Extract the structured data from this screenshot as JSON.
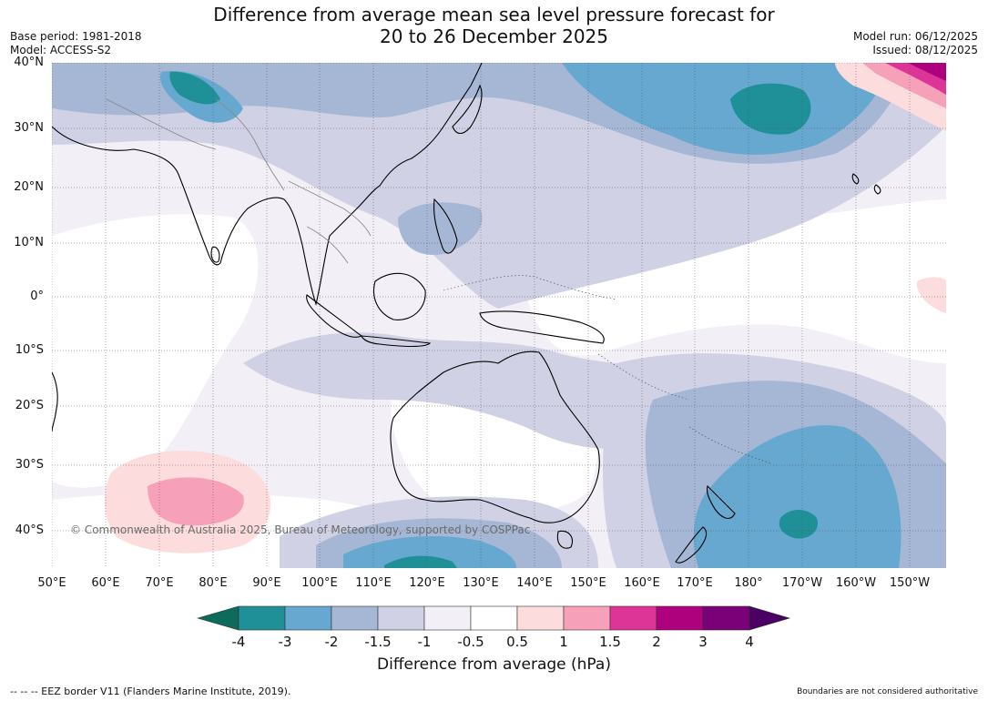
{
  "title_line1": "Difference from average mean sea level pressure forecast for",
  "title_line2": "20 to 26 December 2025",
  "base_period": "Base period: 1981-2018",
  "model": "Model: ACCESS-S2",
  "model_run": "Model run: 06/12/2025",
  "issued": "Issued: 08/12/2025",
  "copyright": "© Commonwealth of Australia 2025, Bureau of Meteorology, supported by COSPPac",
  "lat_labels": [
    "40°N",
    "30°N",
    "20°N",
    "10°N",
    "0°",
    "10°S",
    "20°S",
    "30°S",
    "40°S"
  ],
  "lon_labels": [
    "50°E",
    "60°E",
    "70°E",
    "80°E",
    "90°E",
    "100°E",
    "110°E",
    "120°E",
    "130°E",
    "140°E",
    "150°E",
    "160°E",
    "170°E",
    "180°",
    "170°W",
    "160°W",
    "150°W"
  ],
  "colorbar": {
    "ticks": [
      "-4",
      "-3",
      "-2",
      "-1.5",
      "-1",
      "-0.5",
      "0.5",
      "1",
      "1.5",
      "2",
      "3",
      "4"
    ],
    "colors": [
      "#0e6b5c",
      "#1f8f98",
      "#66a8cf",
      "#a6b7d6",
      "#d0d1e5",
      "#f3eff6",
      "#ffffff",
      "#fcdcdc",
      "#f7a0ba",
      "#dd3497",
      "#ae017e",
      "#7a0177",
      "#4b0063"
    ],
    "title": "Difference from average (hPa)"
  },
  "footer_left": "--  --  -- EEZ border V11 (Flanders Marine Institute, 2019).",
  "footer_right": "Boundaries are not considered authoritative"
}
